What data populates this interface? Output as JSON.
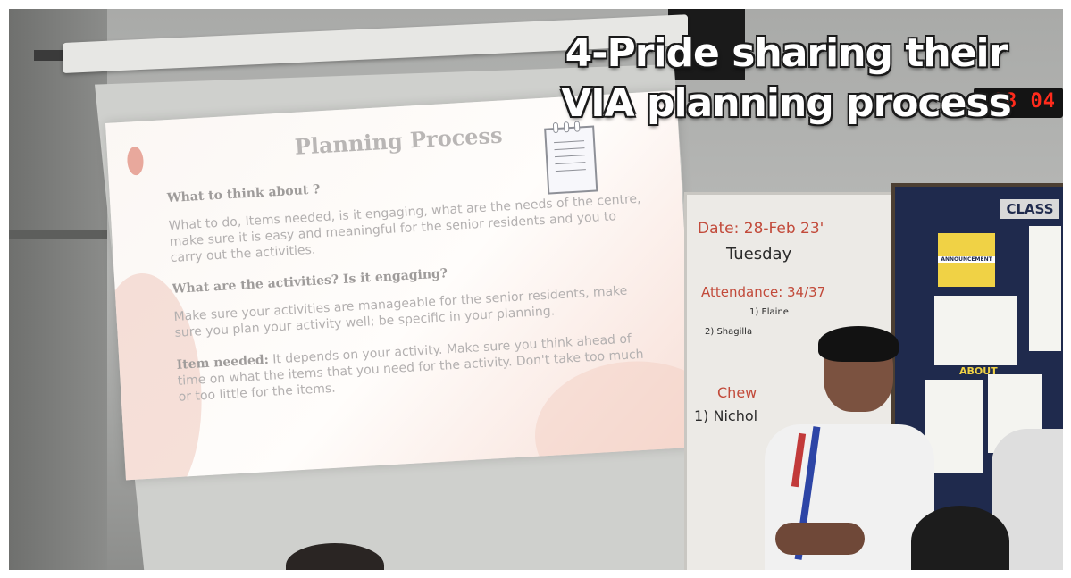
{
  "caption": {
    "line1": "4-Pride sharing their",
    "line2": "VIA planning process"
  },
  "clock": {
    "time": "08 04"
  },
  "slide": {
    "title": "Planning Process",
    "q1": "What to think about ?",
    "p1": "What to do, Items needed, is it engaging, what are the needs of the centre, make sure it is easy and meaningful for the senior residents and you to carry out the activities.",
    "q2": "What are the activities? Is it engaging?",
    "p2": "Make sure your activities are manageable for the senior residents, make sure you plan your activity well; be specific in your planning.",
    "item_label": "Item needed:",
    "p3": "It depends on your activity. Make sure you think ahead of time on what the items that you need for the activity. Don't take too much or too little for the items."
  },
  "whiteboard": {
    "date": "Date: 28-Feb 23'",
    "day": "Tuesday",
    "attendance": "Attendance: 34/37",
    "absent1": "1) Elaine",
    "absent2": "2) Shagilla",
    "chewing": "Chew",
    "name1": "1) Nichol"
  },
  "noticeboard": {
    "title": "CLASS",
    "announcement": "ANNOUNCEMENT",
    "about": "ABOUT"
  }
}
